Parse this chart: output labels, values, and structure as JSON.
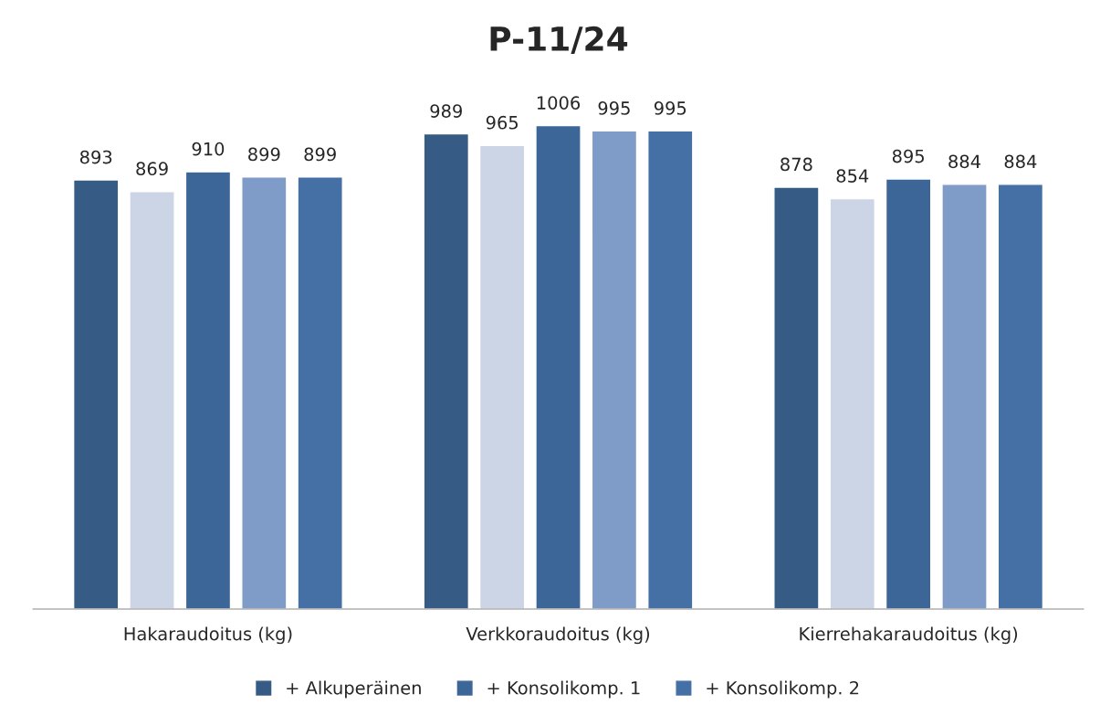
{
  "chart_data": {
    "type": "bar",
    "title": "P-11/24",
    "categories": [
      "Hakaraudoitus (kg)",
      "Verkkoraudoitus (kg)",
      "Kierrehakaraudoitus (kg)"
    ],
    "series": [
      {
        "name": "+ Alkuperäinen",
        "color": "#365b85",
        "values": [
          893,
          989,
          878
        ]
      },
      {
        "color": "#ccd5e5",
        "values": [
          869,
          965,
          854
        ]
      },
      {
        "name": "+ Konsolikomp. 1",
        "color": "#3d6698",
        "values": [
          910,
          1006,
          895
        ]
      },
      {
        "color": "#7f9cc8",
        "values": [
          899,
          995,
          884
        ]
      },
      {
        "name": "+ Konsolikomp. 2",
        "color": "#4470a5",
        "values": [
          899,
          995,
          884
        ]
      }
    ],
    "tick_labels": "x",
    "data_labels": true,
    "legend": "bottom",
    "grid": false
  }
}
